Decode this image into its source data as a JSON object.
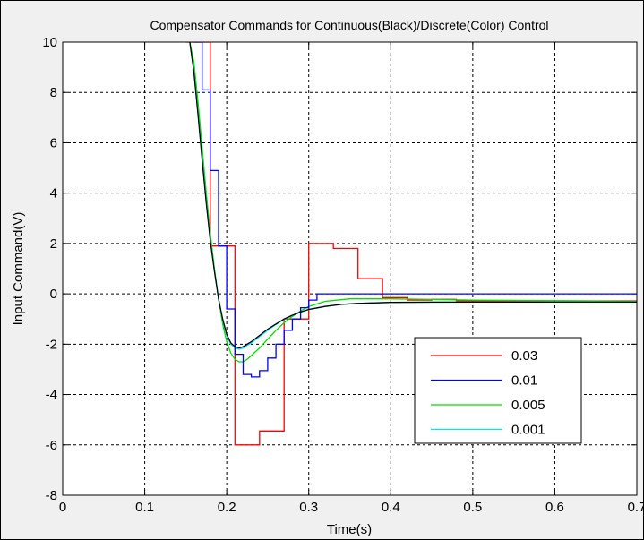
{
  "chart_data": {
    "type": "line",
    "title": "Compensator Commands for Continuous(Black)/Discrete(Color) Control",
    "xlabel": "Time(s)",
    "ylabel": "Input Command(V)",
    "xlim": [
      0,
      0.7
    ],
    "ylim": [
      -8,
      10
    ],
    "xticks": [
      0,
      0.1,
      0.2,
      0.3,
      0.4,
      0.5,
      0.6,
      0.7
    ],
    "xtick_labels": [
      "0",
      "0.1",
      "0.2",
      "0.3",
      "0.4",
      "0.5",
      "0.6",
      "0.7"
    ],
    "yticks": [
      -8,
      -6,
      -4,
      -2,
      0,
      2,
      4,
      6,
      8,
      10
    ],
    "ytick_labels": [
      "-8",
      "-6",
      "-4",
      "-2",
      "0",
      "2",
      "4",
      "6",
      "8",
      "10"
    ],
    "grid": true,
    "legend_position": "lower-right",
    "continuous": {
      "color": "#000000",
      "x": [
        0.155,
        0.16,
        0.165,
        0.17,
        0.175,
        0.18,
        0.185,
        0.19,
        0.195,
        0.2,
        0.205,
        0.21,
        0.215,
        0.22,
        0.225,
        0.23,
        0.24,
        0.25,
        0.26,
        0.27,
        0.28,
        0.29,
        0.3,
        0.32,
        0.34,
        0.36,
        0.4,
        0.45,
        0.5,
        0.6,
        0.7
      ],
      "y": [
        10,
        8.8,
        7.1,
        5.3,
        3.6,
        2.1,
        0.9,
        -0.2,
        -1.0,
        -1.6,
        -1.95,
        -2.1,
        -2.15,
        -2.1,
        -2.0,
        -1.9,
        -1.65,
        -1.4,
        -1.2,
        -1.0,
        -0.85,
        -0.72,
        -0.62,
        -0.5,
        -0.42,
        -0.38,
        -0.34,
        -0.33,
        -0.33,
        -0.33,
        -0.33
      ]
    },
    "series": [
      {
        "name": "0.03",
        "color": "#ff0000",
        "x": [
          0.15,
          0.18,
          0.18,
          0.21,
          0.21,
          0.24,
          0.24,
          0.27,
          0.27,
          0.3,
          0.3,
          0.33,
          0.33,
          0.36,
          0.36,
          0.39,
          0.39,
          0.42,
          0.42,
          0.45,
          0.45,
          0.48,
          0.48,
          0.7
        ],
        "y": [
          10,
          10,
          1.9,
          1.9,
          -6.0,
          -6.0,
          -5.45,
          -5.45,
          -1.0,
          -1.0,
          2.0,
          2.0,
          1.8,
          1.8,
          0.6,
          0.6,
          -0.15,
          -0.15,
          -0.25,
          -0.25,
          -0.22,
          -0.22,
          -0.28,
          -0.28
        ]
      },
      {
        "name": "0.01",
        "color": "#0000ff",
        "x": [
          0.16,
          0.16,
          0.17,
          0.17,
          0.18,
          0.18,
          0.19,
          0.19,
          0.2,
          0.2,
          0.21,
          0.21,
          0.22,
          0.22,
          0.23,
          0.23,
          0.24,
          0.24,
          0.25,
          0.25,
          0.26,
          0.26,
          0.27,
          0.27,
          0.28,
          0.28,
          0.29,
          0.29,
          0.3,
          0.3,
          0.31,
          0.31,
          0.7
        ],
        "y": [
          10,
          10,
          10,
          8.1,
          8.1,
          4.9,
          4.9,
          1.9,
          1.9,
          -0.6,
          -0.6,
          -2.4,
          -2.4,
          -3.2,
          -3.2,
          -3.3,
          -3.3,
          -3.05,
          -3.05,
          -2.55,
          -2.55,
          -2.0,
          -2.0,
          -1.45,
          -1.45,
          -1.0,
          -1.0,
          -0.55,
          -0.55,
          -0.25,
          -0.25,
          0.0,
          0.0
        ]
      },
      {
        "name": "0.005",
        "color": "#00dd00",
        "x": [
          0.155,
          0.16,
          0.165,
          0.17,
          0.175,
          0.18,
          0.185,
          0.19,
          0.195,
          0.2,
          0.205,
          0.21,
          0.215,
          0.22,
          0.225,
          0.23,
          0.24,
          0.25,
          0.26,
          0.27,
          0.28,
          0.29,
          0.3,
          0.32,
          0.35,
          0.4,
          0.5,
          0.7
        ],
        "y": [
          10,
          9.2,
          7.6,
          5.8,
          4.0,
          2.4,
          1.0,
          -0.2,
          -1.2,
          -1.9,
          -2.35,
          -2.6,
          -2.7,
          -2.7,
          -2.6,
          -2.45,
          -2.15,
          -1.8,
          -1.45,
          -1.15,
          -0.9,
          -0.68,
          -0.5,
          -0.3,
          -0.2,
          -0.2,
          -0.25,
          -0.3
        ]
      },
      {
        "name": "0.001",
        "color": "#00e0ff",
        "x": [
          0.155,
          0.16,
          0.165,
          0.17,
          0.175,
          0.18,
          0.185,
          0.19,
          0.195,
          0.2,
          0.205,
          0.21,
          0.215,
          0.22,
          0.225,
          0.23,
          0.24,
          0.25,
          0.26,
          0.27,
          0.28,
          0.29,
          0.3,
          0.32,
          0.34,
          0.36,
          0.4,
          0.5,
          0.7
        ],
        "y": [
          10,
          8.9,
          7.2,
          5.4,
          3.7,
          2.2,
          0.9,
          -0.2,
          -1.05,
          -1.65,
          -2.0,
          -2.15,
          -2.2,
          -2.15,
          -2.05,
          -1.95,
          -1.7,
          -1.45,
          -1.22,
          -1.02,
          -0.86,
          -0.73,
          -0.63,
          -0.5,
          -0.42,
          -0.38,
          -0.34,
          -0.33,
          -0.33
        ]
      }
    ]
  }
}
